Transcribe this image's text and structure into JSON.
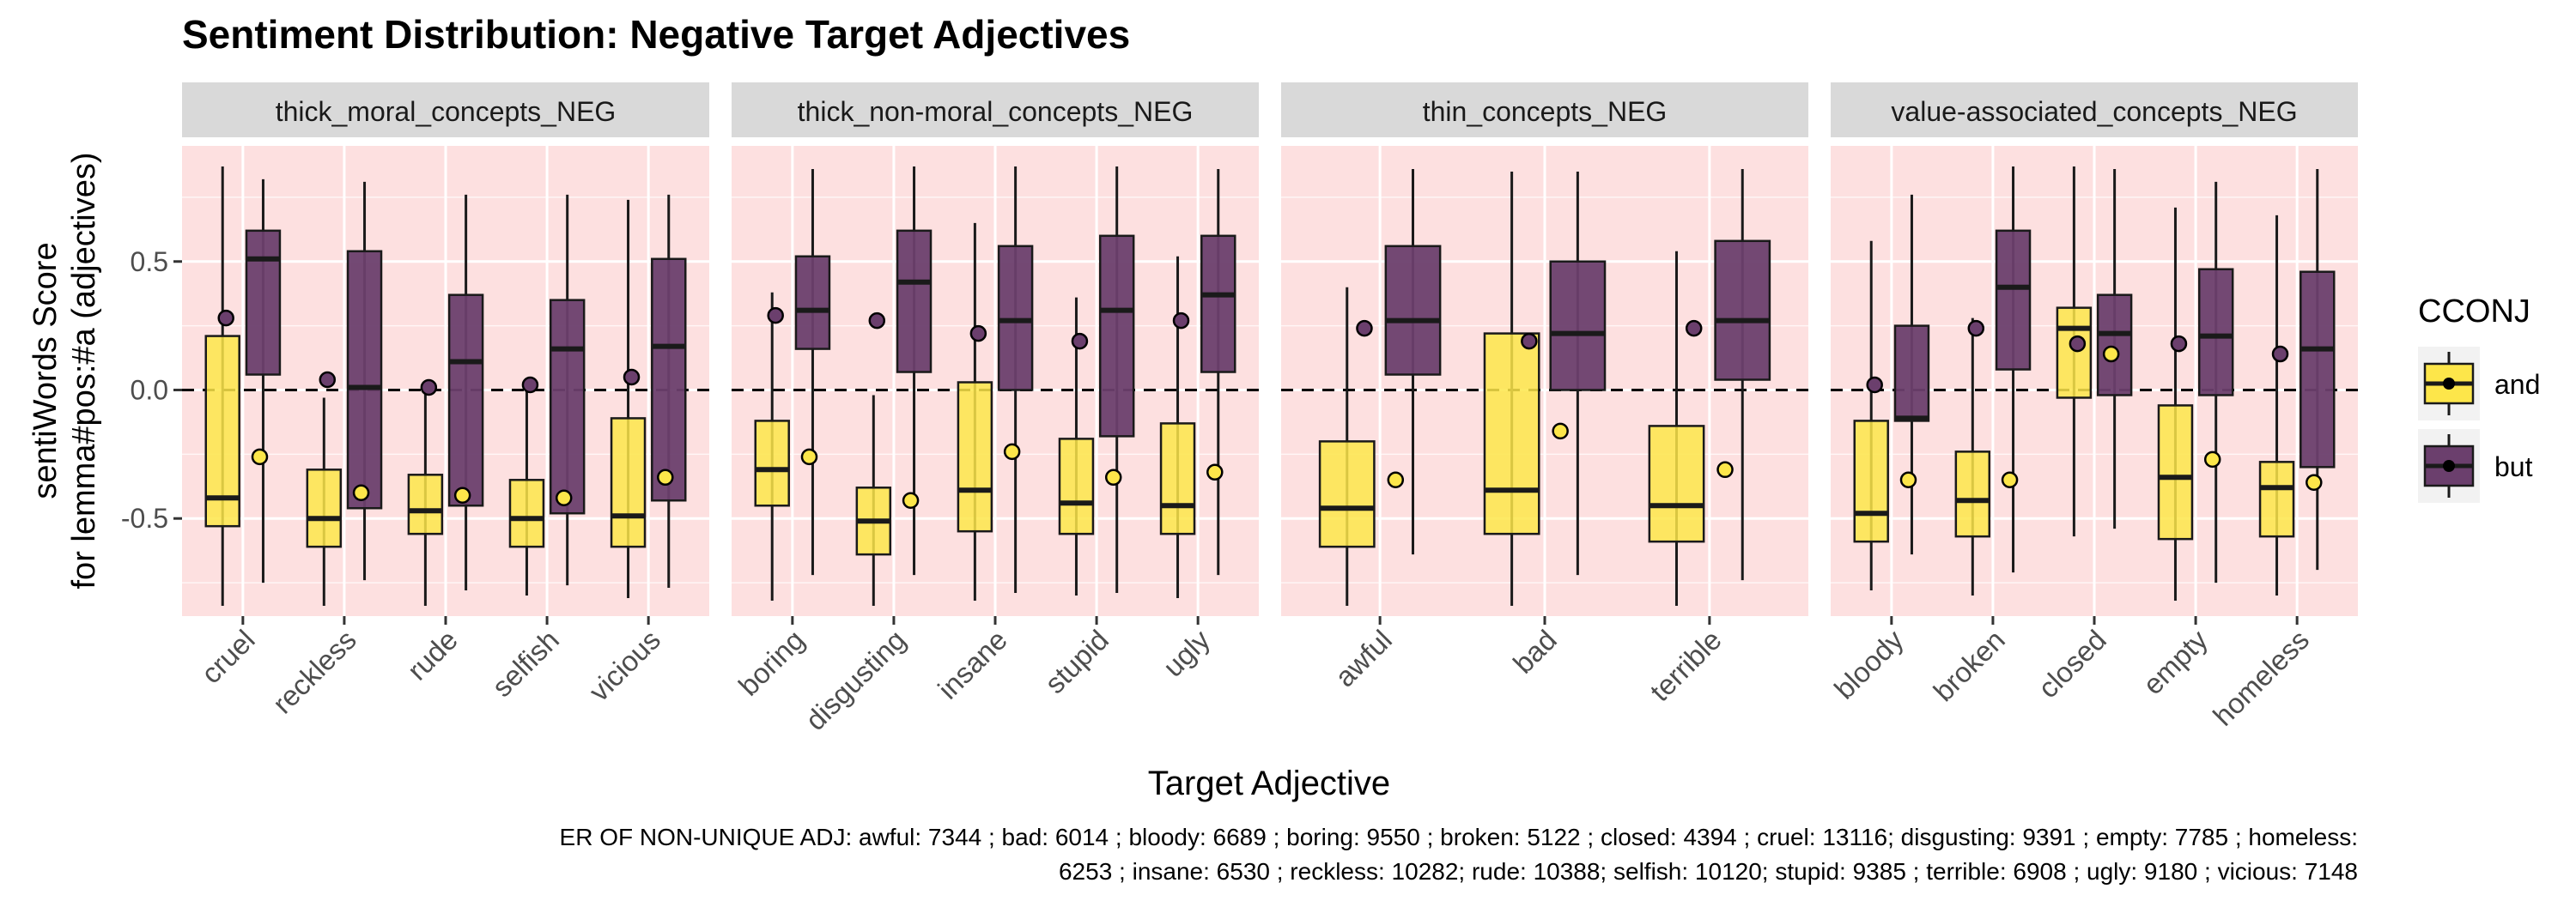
{
  "chart_data": {
    "type": "boxplot",
    "title": "Sentiment Distribution: Negative Target Adjectives",
    "xlabel": "Target Adjective",
    "ylabel_line1": "sentiWords Score",
    "ylabel_line2": "for lemma#pos:#a (adjectives)",
    "ylim": [
      -0.88,
      0.95
    ],
    "yticks": [
      -0.5,
      0.0,
      0.5
    ],
    "ytick_labels": [
      "-0.5",
      "0.0",
      "0.5"
    ],
    "reference_line": 0.0,
    "legend": {
      "title": "CCONJ",
      "position": "right",
      "entries": [
        {
          "label": "and",
          "color": "#fde64a"
        },
        {
          "label": "but",
          "color": "#6b3f6d"
        }
      ]
    },
    "colors": {
      "and_fill": "#fde64a",
      "but_fill": "#6b3f6d",
      "panel_bg": "#fde0e0",
      "strip_bg": "#d9d9d9"
    },
    "caption_line1": "ER OF NON-UNIQUE ADJ: awful: 7344 ; bad: 6014 ; bloody: 6689 ; boring: 9550 ; broken: 5122 ; closed: 4394 ; cruel: 13116; disgusting: 9391 ; empty: 7785 ; homeless:",
    "caption_line2": "6253 ; insane: 6530 ; reckless: 10282; rude: 10388; selfish: 10120; stupid: 9385 ; terrible: 6908 ; ugly: 9180 ; vicious: 7148",
    "panels": [
      {
        "name": "thick_moral_concepts_NEG",
        "categories": [
          {
            "label": "cruel",
            "and": {
              "min": -0.84,
              "q1": -0.53,
              "median": -0.42,
              "q3": 0.21,
              "max": 0.87,
              "mean": -0.26
            },
            "but": {
              "min": -0.75,
              "q1": 0.06,
              "median": 0.51,
              "q3": 0.62,
              "max": 0.82,
              "mean": 0.28
            }
          },
          {
            "label": "reckless",
            "and": {
              "min": -0.84,
              "q1": -0.61,
              "median": -0.5,
              "q3": -0.31,
              "max": -0.03,
              "mean": -0.4
            },
            "but": {
              "min": -0.74,
              "q1": -0.46,
              "median": 0.01,
              "q3": 0.54,
              "max": 0.81,
              "mean": 0.04
            }
          },
          {
            "label": "rude",
            "and": {
              "min": -0.84,
              "q1": -0.56,
              "median": -0.47,
              "q3": -0.33,
              "max": 0.0,
              "mean": -0.41
            },
            "but": {
              "min": -0.78,
              "q1": -0.45,
              "median": 0.11,
              "q3": 0.37,
              "max": 0.76,
              "mean": 0.01
            }
          },
          {
            "label": "selfish",
            "and": {
              "min": -0.8,
              "q1": -0.61,
              "median": -0.5,
              "q3": -0.35,
              "max": 0.03,
              "mean": -0.42
            },
            "but": {
              "min": -0.76,
              "q1": -0.48,
              "median": 0.16,
              "q3": 0.35,
              "max": 0.76,
              "mean": 0.02
            }
          },
          {
            "label": "vicious",
            "and": {
              "min": -0.81,
              "q1": -0.61,
              "median": -0.49,
              "q3": -0.11,
              "max": 0.74,
              "mean": -0.34
            },
            "but": {
              "min": -0.77,
              "q1": -0.43,
              "median": 0.17,
              "q3": 0.51,
              "max": 0.76,
              "mean": 0.05
            }
          }
        ]
      },
      {
        "name": "thick_non-moral_concepts_NEG",
        "categories": [
          {
            "label": "boring",
            "and": {
              "min": -0.82,
              "q1": -0.45,
              "median": -0.31,
              "q3": -0.12,
              "max": 0.38,
              "mean": -0.26
            },
            "but": {
              "min": -0.72,
              "q1": 0.16,
              "median": 0.31,
              "q3": 0.52,
              "max": 0.86,
              "mean": 0.29
            }
          },
          {
            "label": "disgusting",
            "and": {
              "min": -0.84,
              "q1": -0.64,
              "median": -0.51,
              "q3": -0.38,
              "max": -0.02,
              "mean": -0.43
            },
            "but": {
              "min": -0.72,
              "q1": 0.07,
              "median": 0.42,
              "q3": 0.62,
              "max": 0.87,
              "mean": 0.27
            }
          },
          {
            "label": "insane",
            "and": {
              "min": -0.82,
              "q1": -0.55,
              "median": -0.39,
              "q3": 0.03,
              "max": 0.65,
              "mean": -0.24
            },
            "but": {
              "min": -0.79,
              "q1": 0.0,
              "median": 0.27,
              "q3": 0.56,
              "max": 0.87,
              "mean": 0.22
            }
          },
          {
            "label": "stupid",
            "and": {
              "min": -0.8,
              "q1": -0.56,
              "median": -0.44,
              "q3": -0.19,
              "max": 0.36,
              "mean": -0.34
            },
            "but": {
              "min": -0.79,
              "q1": -0.18,
              "median": 0.31,
              "q3": 0.6,
              "max": 0.87,
              "mean": 0.19
            }
          },
          {
            "label": "ugly",
            "and": {
              "min": -0.81,
              "q1": -0.56,
              "median": -0.45,
              "q3": -0.13,
              "max": 0.52,
              "mean": -0.32
            },
            "but": {
              "min": -0.72,
              "q1": 0.07,
              "median": 0.37,
              "q3": 0.6,
              "max": 0.86,
              "mean": 0.27
            }
          }
        ]
      },
      {
        "name": "thin_concepts_NEG",
        "categories": [
          {
            "label": "awful",
            "and": {
              "min": -0.84,
              "q1": -0.61,
              "median": -0.46,
              "q3": -0.2,
              "max": 0.4,
              "mean": -0.35
            },
            "but": {
              "min": -0.64,
              "q1": 0.06,
              "median": 0.27,
              "q3": 0.56,
              "max": 0.86,
              "mean": 0.24
            }
          },
          {
            "label": "bad",
            "and": {
              "min": -0.84,
              "q1": -0.56,
              "median": -0.39,
              "q3": 0.22,
              "max": 0.85,
              "mean": -0.16
            },
            "but": {
              "min": -0.72,
              "q1": 0.0,
              "median": 0.22,
              "q3": 0.5,
              "max": 0.85,
              "mean": 0.19
            }
          },
          {
            "label": "terrible",
            "and": {
              "min": -0.84,
              "q1": -0.59,
              "median": -0.45,
              "q3": -0.14,
              "max": 0.54,
              "mean": -0.31
            },
            "but": {
              "min": -0.74,
              "q1": 0.04,
              "median": 0.27,
              "q3": 0.58,
              "max": 0.86,
              "mean": 0.24
            }
          }
        ]
      },
      {
        "name": "value-associated_concepts_NEG",
        "categories": [
          {
            "label": "bloody",
            "and": {
              "min": -0.78,
              "q1": -0.59,
              "median": -0.48,
              "q3": -0.12,
              "max": 0.58,
              "mean": -0.35
            },
            "but": {
              "min": -0.64,
              "q1": -0.12,
              "median": -0.11,
              "q3": 0.25,
              "max": 0.76,
              "mean": 0.02
            }
          },
          {
            "label": "broken",
            "and": {
              "min": -0.8,
              "q1": -0.57,
              "median": -0.43,
              "q3": -0.24,
              "max": 0.28,
              "mean": -0.35
            },
            "but": {
              "min": -0.71,
              "q1": 0.08,
              "median": 0.4,
              "q3": 0.62,
              "max": 0.87,
              "mean": 0.24
            }
          },
          {
            "label": "closed",
            "and": {
              "min": -0.57,
              "q1": -0.03,
              "median": 0.24,
              "q3": 0.32,
              "max": 0.87,
              "mean": 0.14
            },
            "but": {
              "min": -0.54,
              "q1": -0.02,
              "median": 0.22,
              "q3": 0.37,
              "max": 0.86,
              "mean": 0.18
            }
          },
          {
            "label": "empty",
            "and": {
              "min": -0.82,
              "q1": -0.58,
              "median": -0.34,
              "q3": -0.06,
              "max": 0.71,
              "mean": -0.27
            },
            "but": {
              "min": -0.75,
              "q1": -0.02,
              "median": 0.21,
              "q3": 0.47,
              "max": 0.81,
              "mean": 0.18
            }
          },
          {
            "label": "homeless",
            "and": {
              "min": -0.8,
              "q1": -0.57,
              "median": -0.38,
              "q3": -0.28,
              "max": 0.68,
              "mean": -0.36
            },
            "but": {
              "min": -0.7,
              "q1": -0.3,
              "median": 0.16,
              "q3": 0.46,
              "max": 0.86,
              "mean": 0.14
            }
          }
        ]
      }
    ]
  }
}
